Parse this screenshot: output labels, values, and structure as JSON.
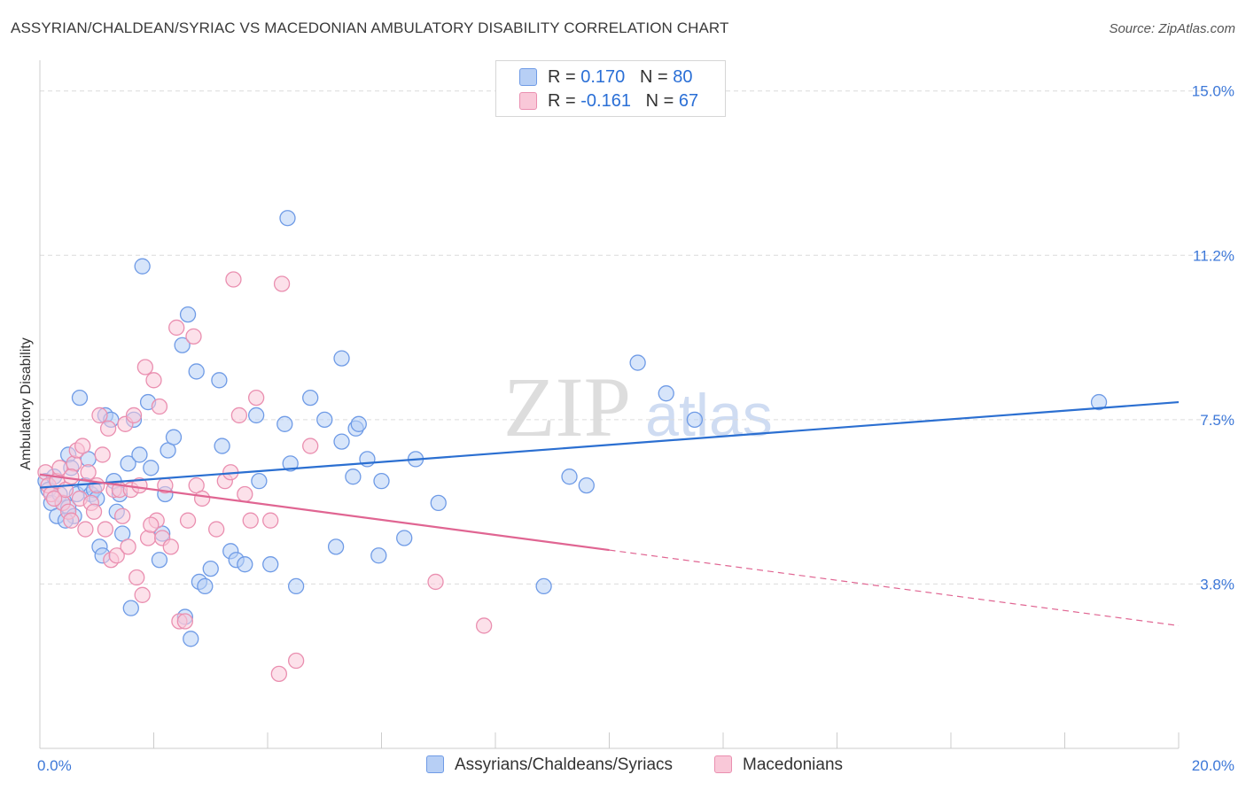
{
  "chart_data": {
    "type": "scatter",
    "title": "ASSYRIAN/CHALDEAN/SYRIAC VS MACEDONIAN AMBULATORY DISABILITY CORRELATION CHART",
    "source": "Source: ZipAtlas.com",
    "ylabel": "Ambulatory Disability",
    "xlabel": "",
    "xlim": [
      0,
      20
    ],
    "ylim": [
      0,
      15.5
    ],
    "x_tick_labels": [
      {
        "value": 0,
        "label": "0.0%"
      },
      {
        "value": 20,
        "label": "20.0%"
      }
    ],
    "y_tick_labels": [
      {
        "value": 3.75,
        "label": "3.8%"
      },
      {
        "value": 7.5,
        "label": "7.5%"
      },
      {
        "value": 11.25,
        "label": "11.2%"
      },
      {
        "value": 15.0,
        "label": "15.0%"
      }
    ],
    "watermark": {
      "zip": "ZIP",
      "atlas": "atlas"
    },
    "legend": [
      {
        "r_label": "R =",
        "r_value": "0.170",
        "n_label": "N =",
        "n_value": "80"
      },
      {
        "r_label": "R =",
        "r_value": "-0.161",
        "n_label": "N =",
        "n_value": "67"
      }
    ],
    "series": [
      {
        "name": "Assyrians/Chaldeans/Syriacs",
        "color": "#6f9be6",
        "fill": "#b7cff5",
        "trend": {
          "x0": 0,
          "y0": 5.95,
          "x1": 20,
          "y1": 7.9,
          "solid_until": 20
        },
        "points": [
          [
            0.1,
            6.1
          ],
          [
            0.15,
            5.9
          ],
          [
            0.2,
            5.6
          ],
          [
            0.3,
            5.3
          ],
          [
            0.35,
            5.8
          ],
          [
            0.4,
            5.6
          ],
          [
            0.5,
            5.5
          ],
          [
            0.5,
            6.7
          ],
          [
            0.55,
            6.4
          ],
          [
            0.6,
            5.3
          ],
          [
            0.65,
            5.8
          ],
          [
            0.7,
            8.0
          ],
          [
            0.8,
            6.0
          ],
          [
            0.85,
            6.6
          ],
          [
            0.9,
            5.8
          ],
          [
            0.95,
            5.9
          ],
          [
            1.0,
            5.7
          ],
          [
            1.05,
            4.6
          ],
          [
            1.1,
            4.4
          ],
          [
            1.15,
            7.6
          ],
          [
            1.25,
            7.5
          ],
          [
            1.3,
            6.1
          ],
          [
            1.35,
            5.4
          ],
          [
            1.4,
            5.8
          ],
          [
            1.45,
            4.9
          ],
          [
            1.55,
            6.5
          ],
          [
            1.6,
            3.2
          ],
          [
            1.65,
            7.5
          ],
          [
            1.75,
            6.7
          ],
          [
            1.8,
            11.0
          ],
          [
            1.9,
            7.9
          ],
          [
            1.95,
            6.4
          ],
          [
            2.1,
            4.3
          ],
          [
            2.15,
            4.9
          ],
          [
            2.2,
            5.8
          ],
          [
            2.25,
            6.8
          ],
          [
            2.35,
            7.1
          ],
          [
            2.5,
            9.2
          ],
          [
            2.55,
            3.0
          ],
          [
            2.6,
            9.9
          ],
          [
            2.65,
            2.5
          ],
          [
            2.75,
            8.6
          ],
          [
            2.8,
            3.8
          ],
          [
            2.9,
            3.7
          ],
          [
            3.0,
            4.1
          ],
          [
            3.15,
            8.4
          ],
          [
            3.2,
            6.9
          ],
          [
            3.35,
            4.5
          ],
          [
            3.45,
            4.3
          ],
          [
            3.6,
            4.2
          ],
          [
            3.8,
            7.6
          ],
          [
            3.85,
            6.1
          ],
          [
            4.05,
            4.2
          ],
          [
            4.3,
            7.4
          ],
          [
            4.35,
            12.1
          ],
          [
            4.4,
            6.5
          ],
          [
            4.5,
            3.7
          ],
          [
            4.75,
            8.0
          ],
          [
            5.0,
            7.5
          ],
          [
            5.2,
            4.6
          ],
          [
            5.3,
            7.0
          ],
          [
            5.3,
            8.9
          ],
          [
            5.5,
            6.2
          ],
          [
            5.55,
            7.3
          ],
          [
            5.6,
            7.4
          ],
          [
            5.75,
            6.6
          ],
          [
            5.95,
            4.4
          ],
          [
            6.0,
            6.1
          ],
          [
            6.4,
            4.8
          ],
          [
            6.6,
            6.6
          ],
          [
            7.0,
            5.6
          ],
          [
            8.85,
            3.7
          ],
          [
            9.3,
            6.2
          ],
          [
            9.6,
            6.0
          ],
          [
            10.5,
            8.8
          ],
          [
            11.0,
            8.1
          ],
          [
            11.5,
            7.5
          ],
          [
            18.6,
            7.9
          ],
          [
            0.25,
            6.2
          ],
          [
            0.45,
            5.2
          ]
        ]
      },
      {
        "name": "Macedonians",
        "color": "#ea8fb0",
        "fill": "#f9c8d8",
        "trend": {
          "x0": 0,
          "y0": 6.25,
          "x1": 20,
          "y1": 2.8,
          "solid_until": 10
        },
        "points": [
          [
            0.1,
            6.3
          ],
          [
            0.15,
            6.0
          ],
          [
            0.2,
            5.8
          ],
          [
            0.3,
            6.1
          ],
          [
            0.35,
            6.4
          ],
          [
            0.4,
            5.6
          ],
          [
            0.45,
            5.9
          ],
          [
            0.5,
            5.4
          ],
          [
            0.55,
            5.2
          ],
          [
            0.6,
            6.5
          ],
          [
            0.65,
            6.8
          ],
          [
            0.7,
            5.7
          ],
          [
            0.75,
            6.9
          ],
          [
            0.8,
            5.0
          ],
          [
            0.85,
            6.3
          ],
          [
            0.9,
            5.6
          ],
          [
            0.95,
            5.4
          ],
          [
            1.0,
            6.0
          ],
          [
            1.05,
            7.6
          ],
          [
            1.1,
            6.7
          ],
          [
            1.15,
            5.0
          ],
          [
            1.2,
            7.3
          ],
          [
            1.25,
            4.3
          ],
          [
            1.3,
            5.9
          ],
          [
            1.35,
            4.4
          ],
          [
            1.4,
            5.9
          ],
          [
            1.45,
            5.3
          ],
          [
            1.5,
            7.4
          ],
          [
            1.55,
            4.6
          ],
          [
            1.6,
            5.9
          ],
          [
            1.65,
            7.6
          ],
          [
            1.7,
            3.9
          ],
          [
            1.75,
            6.0
          ],
          [
            1.8,
            3.5
          ],
          [
            1.85,
            8.7
          ],
          [
            1.9,
            4.8
          ],
          [
            2.0,
            8.4
          ],
          [
            2.05,
            5.2
          ],
          [
            2.1,
            7.8
          ],
          [
            2.15,
            4.8
          ],
          [
            2.2,
            6.0
          ],
          [
            2.3,
            4.6
          ],
          [
            2.4,
            9.6
          ],
          [
            2.45,
            2.9
          ],
          [
            2.55,
            2.9
          ],
          [
            2.6,
            5.2
          ],
          [
            2.7,
            9.4
          ],
          [
            2.75,
            6.0
          ],
          [
            2.85,
            5.7
          ],
          [
            3.1,
            5.0
          ],
          [
            3.25,
            6.1
          ],
          [
            3.4,
            10.7
          ],
          [
            3.5,
            7.6
          ],
          [
            3.6,
            5.8
          ],
          [
            3.7,
            5.2
          ],
          [
            3.8,
            8.0
          ],
          [
            4.05,
            5.2
          ],
          [
            4.2,
            1.7
          ],
          [
            4.25,
            10.6
          ],
          [
            4.5,
            2.0
          ],
          [
            4.75,
            6.9
          ],
          [
            6.95,
            3.8
          ],
          [
            7.8,
            2.8
          ],
          [
            0.25,
            5.7
          ],
          [
            0.55,
            6.2
          ],
          [
            1.95,
            5.1
          ],
          [
            3.35,
            6.3
          ]
        ]
      }
    ]
  }
}
